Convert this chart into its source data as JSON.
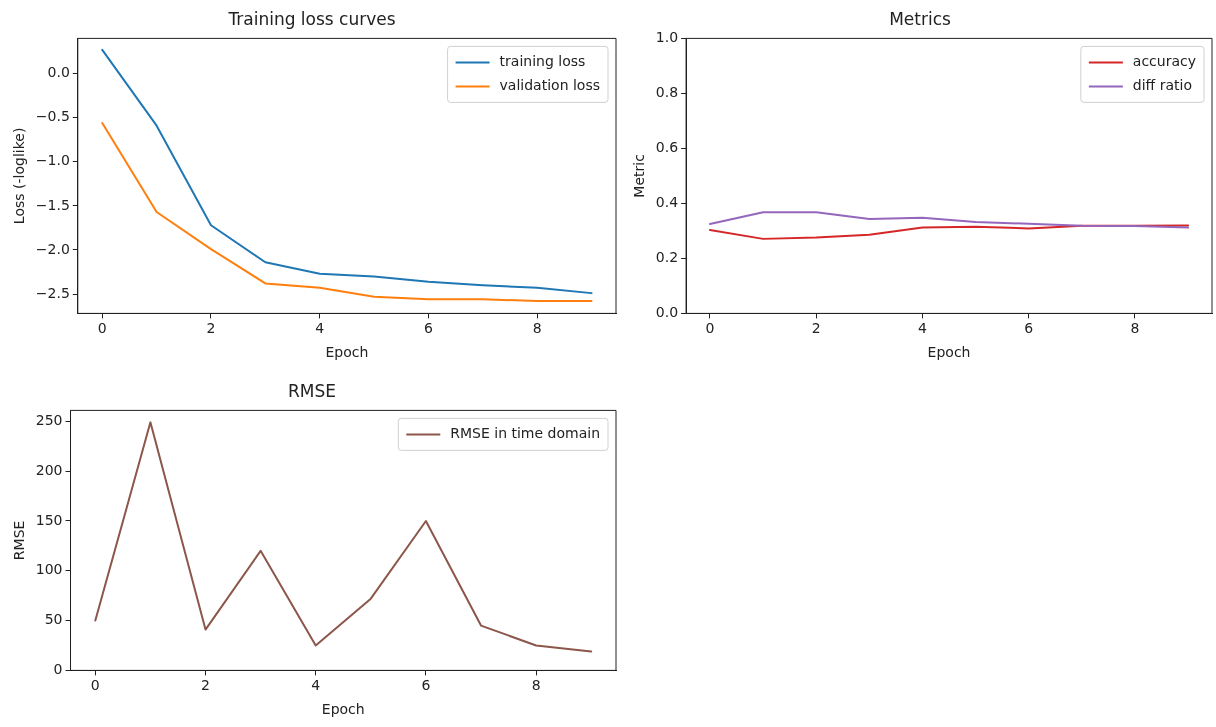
{
  "chart_data": [
    {
      "type": "line",
      "title": "Training loss curves",
      "xlabel": "Epoch",
      "ylabel": "Loss (-loglike)",
      "x": [
        0,
        1,
        2,
        3,
        4,
        5,
        6,
        7,
        8,
        9
      ],
      "series": [
        {
          "name": "training loss",
          "color": "#1f77b4",
          "values": [
            0.27,
            -0.59,
            -1.72,
            -2.14,
            -2.27,
            -2.3,
            -2.36,
            -2.4,
            -2.43,
            -2.49
          ]
        },
        {
          "name": "validation loss",
          "color": "#ff7f0e",
          "values": [
            -0.56,
            -1.57,
            -1.99,
            -2.38,
            -2.43,
            -2.53,
            -2.56,
            -2.56,
            -2.58,
            -2.58
          ]
        }
      ],
      "xlim": [
        -0.45,
        9.45
      ],
      "xticks": [
        0,
        2,
        4,
        6,
        8
      ],
      "ylim": [
        -2.72,
        0.4
      ],
      "yticks": [
        {
          "value": 0,
          "label": "0.0"
        },
        {
          "value": -0.5,
          "label": "−0.5"
        },
        {
          "value": -1,
          "label": "−1.0"
        },
        {
          "value": -1.5,
          "label": "−1.5"
        },
        {
          "value": -2,
          "label": "−2.0"
        },
        {
          "value": -2.5,
          "label": "−2.5"
        }
      ],
      "grid": false,
      "legend": "top right",
      "marker": "none",
      "line_style": "solid"
    },
    {
      "type": "line",
      "title": "Metrics",
      "xlabel": "Epoch",
      "ylabel": "Metric",
      "x": [
        0,
        1,
        2,
        3,
        4,
        5,
        6,
        7,
        8,
        9
      ],
      "series": [
        {
          "name": "accuracy",
          "color": "#d62728",
          "values": [
            0.303,
            0.271,
            0.276,
            0.286,
            0.312,
            0.315,
            0.309,
            0.319,
            0.319,
            0.32
          ]
        },
        {
          "name": "diff ratio",
          "color": "#9467bd",
          "values": [
            0.325,
            0.368,
            0.368,
            0.343,
            0.348,
            0.332,
            0.326,
            0.319,
            0.318,
            0.312
          ]
        }
      ],
      "xlim": [
        -0.45,
        9.45
      ],
      "xticks": [
        0,
        2,
        4,
        6,
        8
      ],
      "ylim": [
        0,
        1
      ],
      "yticks": [
        {
          "value": 0,
          "label": "0.0"
        },
        {
          "value": 0.2,
          "label": "0.2"
        },
        {
          "value": 0.4,
          "label": "0.4"
        },
        {
          "value": 0.6,
          "label": "0.6"
        },
        {
          "value": 0.8,
          "label": "0.8"
        },
        {
          "value": 1,
          "label": "1.0"
        }
      ],
      "grid": false,
      "legend": "top right",
      "marker": "none",
      "line_style": "solid"
    },
    {
      "type": "line",
      "title": "RMSE",
      "xlabel": "Epoch",
      "ylabel": "RMSE",
      "x": [
        0,
        1,
        2,
        3,
        4,
        5,
        6,
        7,
        8,
        9
      ],
      "series": [
        {
          "name": "RMSE in time domain",
          "color": "#8c564b",
          "values": [
            50,
            249,
            41,
            120,
            25,
            72,
            150,
            45,
            25,
            19
          ]
        }
      ],
      "xlim": [
        -0.45,
        9.45
      ],
      "xticks": [
        0,
        2,
        4,
        6,
        8
      ],
      "ylim": [
        0,
        261
      ],
      "yticks": [
        0,
        50,
        100,
        150,
        200,
        250
      ],
      "grid": false,
      "legend": "top right",
      "marker": "none",
      "line_style": "solid"
    }
  ]
}
